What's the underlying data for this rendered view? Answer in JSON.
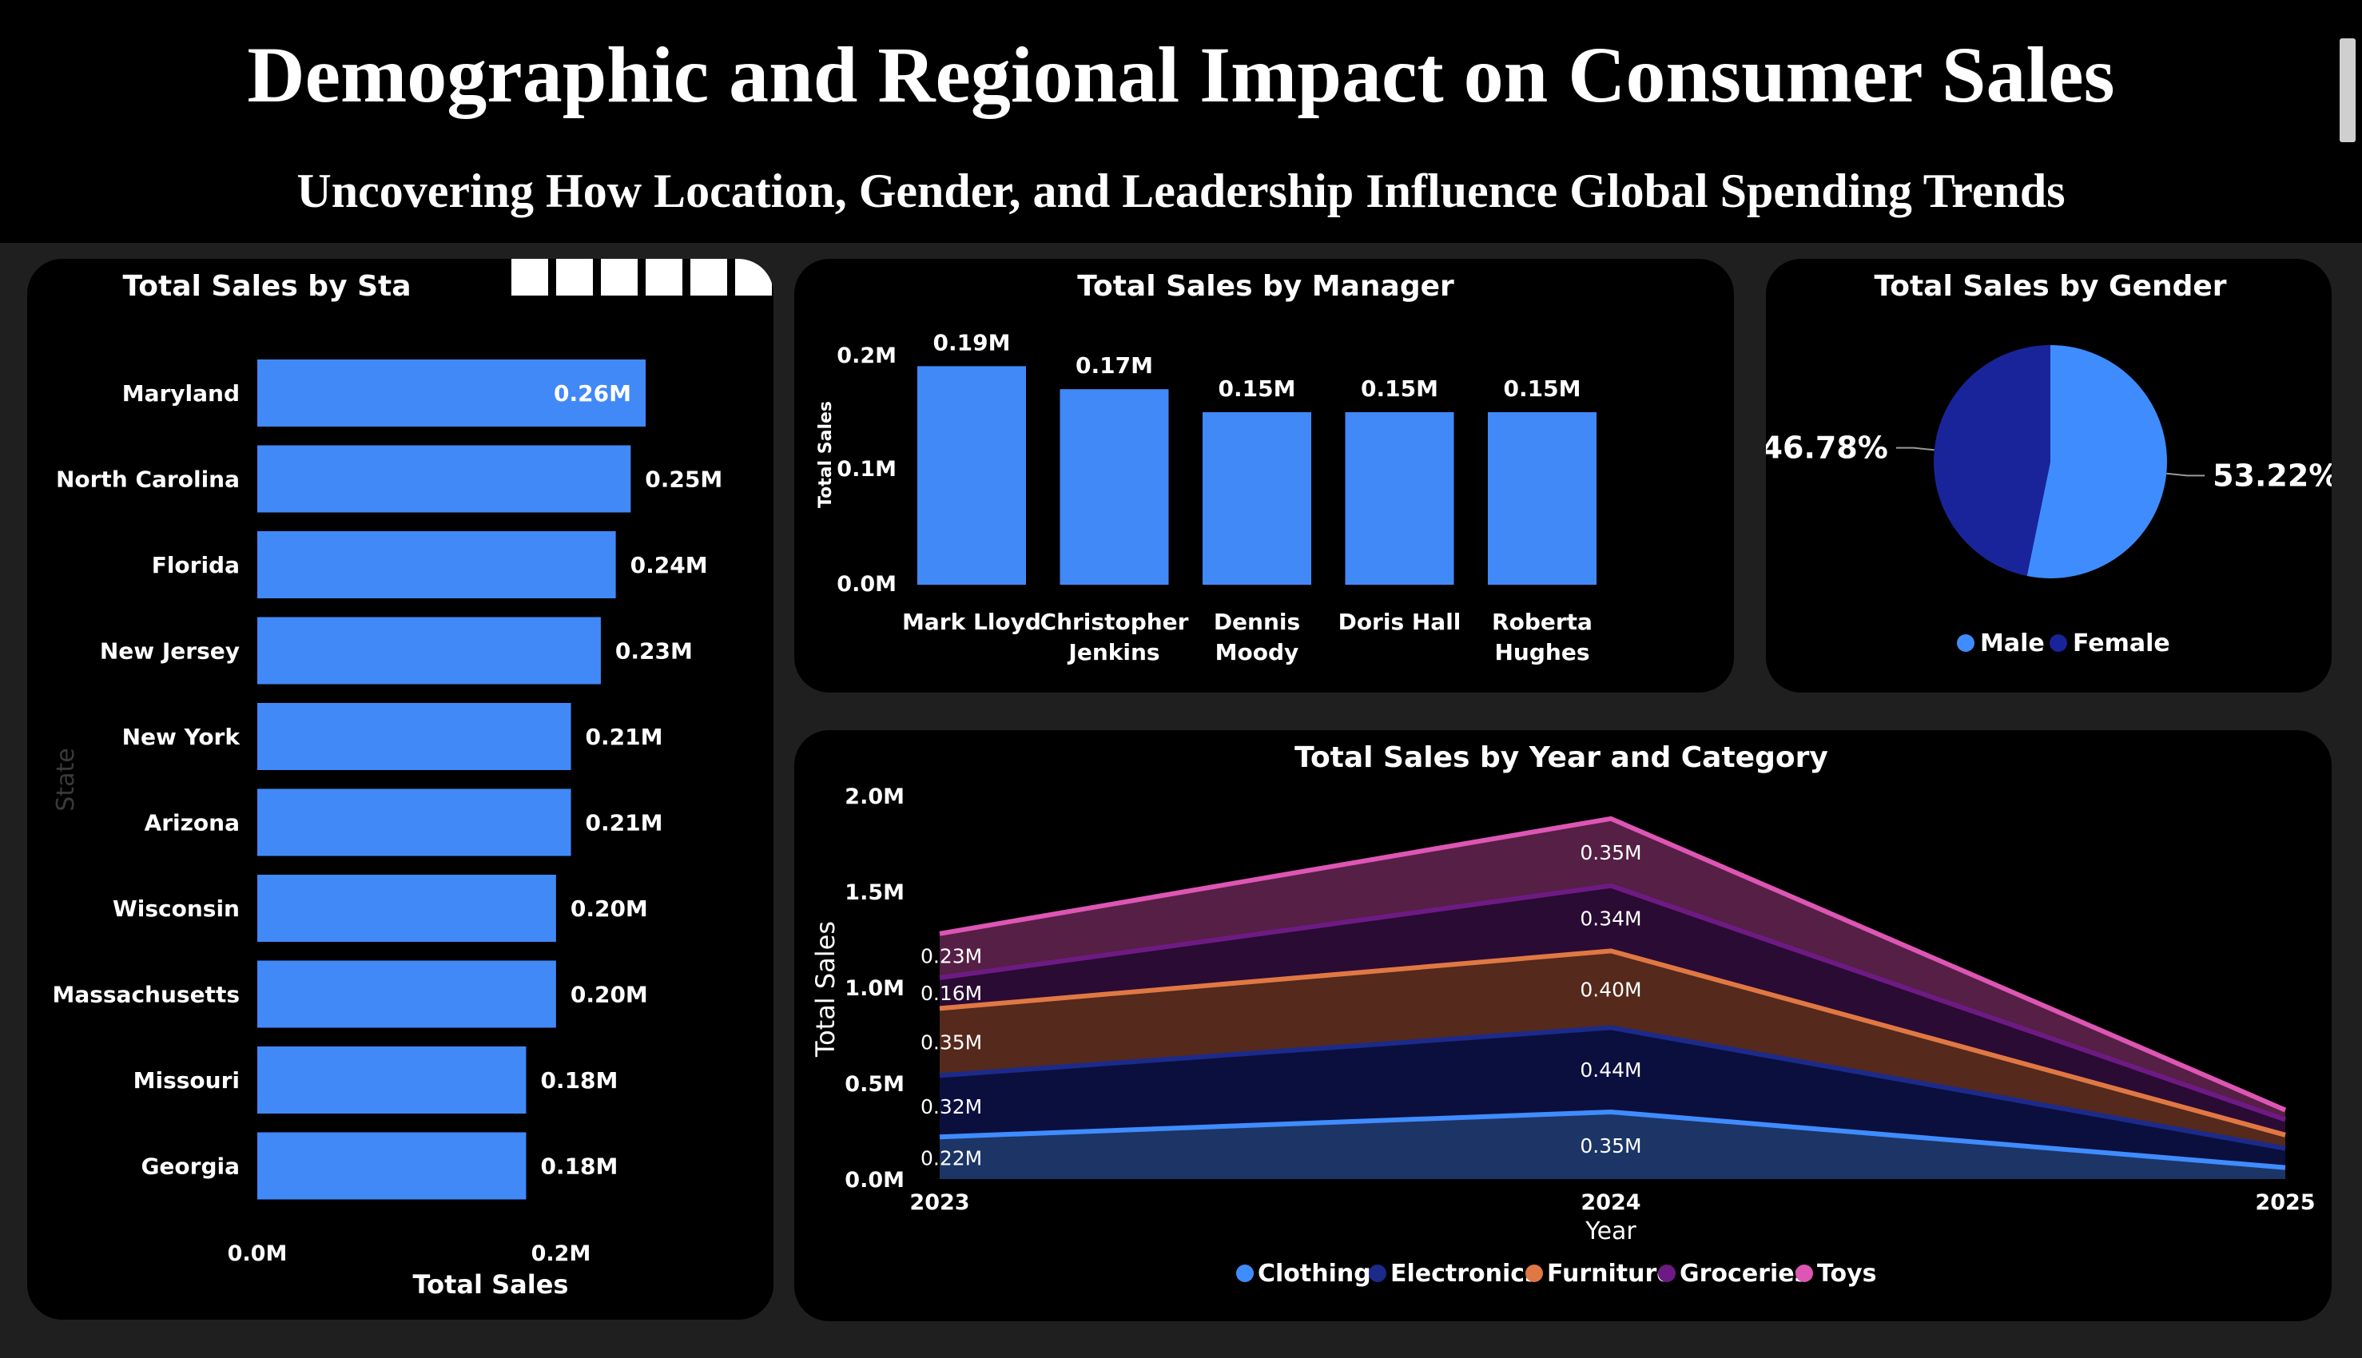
{
  "header": {
    "title": "Demographic and Regional Impact on Consumer Sales",
    "subtitle": "Uncovering How Location, Gender, and Leadership Influence Global Spending Trends"
  },
  "colors": {
    "page_background": "#1f1f1f",
    "panel_background": "#000000",
    "bar_blue": "#4289f8",
    "male": "#3f8cff",
    "female": "#1a249a",
    "clothing": "#3f8cff",
    "electronics": "#1c2a8a",
    "furniture": "#e07844",
    "groceries": "#6e1a84",
    "toys": "#dd56b4"
  },
  "chart_data": [
    {
      "id": "state",
      "type": "bar",
      "orientation": "horizontal",
      "title": "Total Sales by Sta",
      "xlabel": "Total Sales",
      "ylabel": "State",
      "categories": [
        "Maryland",
        "North Carolina",
        "Florida",
        "New Jersey",
        "New York",
        "Arizona",
        "Wisconsin",
        "Massachusetts",
        "Missouri",
        "Georgia"
      ],
      "values": [
        0.26,
        0.25,
        0.24,
        0.23,
        0.21,
        0.21,
        0.2,
        0.2,
        0.18,
        0.18
      ],
      "data_labels": [
        "0.26M",
        "0.25M",
        "0.24M",
        "0.23M",
        "0.21M",
        "0.21M",
        "0.20M",
        "0.20M",
        "0.18M",
        "0.18M"
      ],
      "x_ticks": [
        "0.0M",
        "0.2M"
      ],
      "xlim": [
        0,
        0.26
      ],
      "unit": "M"
    },
    {
      "id": "manager",
      "type": "bar",
      "title": "Total Sales by Manager",
      "ylabel": "Total Sales",
      "categories": [
        [
          "Mark Lloyd"
        ],
        [
          "Christopher",
          "Jenkins"
        ],
        [
          "Dennis",
          "Moody"
        ],
        [
          "Doris Hall"
        ],
        [
          "Roberta",
          "Hughes"
        ]
      ],
      "values": [
        0.19,
        0.17,
        0.15,
        0.15,
        0.15
      ],
      "data_labels": [
        "0.19M",
        "0.17M",
        "0.15M",
        "0.15M",
        "0.15M"
      ],
      "y_ticks": [
        "0.0M",
        "0.1M",
        "0.2M"
      ],
      "ylim": [
        0,
        0.2
      ],
      "unit": "M"
    },
    {
      "id": "gender",
      "type": "pie",
      "title": "Total Sales by Gender",
      "slices": [
        {
          "name": "Male",
          "value": 53.22,
          "label": "53.22%"
        },
        {
          "name": "Female",
          "value": 46.78,
          "label": "46.78%"
        }
      ],
      "legend": [
        "Male",
        "Female"
      ],
      "legend_position": "bottom"
    },
    {
      "id": "year_category",
      "type": "area",
      "stacked": true,
      "title": "Total Sales by Year and Category",
      "xlabel": "Year",
      "ylabel": "Total Sales",
      "x": [
        "2023",
        "2024",
        "2025"
      ],
      "y_ticks": [
        "0.0M",
        "0.5M",
        "1.0M",
        "1.5M",
        "2.0M"
      ],
      "ylim": [
        0,
        2.0
      ],
      "unit": "M",
      "series": [
        {
          "name": "Clothing",
          "values": [
            0.22,
            0.35,
            0.06
          ],
          "labels": [
            "0.22M",
            "0.35M",
            ""
          ]
        },
        {
          "name": "Electronics",
          "values": [
            0.32,
            0.44,
            0.1
          ],
          "labels": [
            "0.32M",
            "0.44M",
            ""
          ]
        },
        {
          "name": "Furniture",
          "values": [
            0.35,
            0.4,
            0.07
          ],
          "labels": [
            "0.35M",
            "0.40M",
            ""
          ]
        },
        {
          "name": "Groceries",
          "values": [
            0.16,
            0.34,
            0.08
          ],
          "labels": [
            "0.16M",
            "0.34M",
            ""
          ]
        },
        {
          "name": "Toys",
          "values": [
            0.23,
            0.35,
            0.05
          ],
          "labels": [
            "0.23M",
            "0.35M",
            ""
          ]
        }
      ],
      "legend_position": "bottom"
    }
  ]
}
